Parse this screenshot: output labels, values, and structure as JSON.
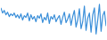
{
  "chart_data": {
    "type": "line",
    "x": [
      0,
      1,
      2,
      3,
      4,
      5,
      6,
      7,
      8,
      9,
      10,
      11,
      12,
      13,
      14,
      15,
      16,
      17,
      18,
      19,
      20,
      21,
      22,
      23,
      24,
      25,
      26,
      27,
      28,
      29,
      30,
      31,
      32,
      33,
      34,
      35,
      36,
      37,
      38,
      39,
      40,
      41,
      42,
      43,
      44,
      45,
      46,
      47,
      48,
      49,
      50,
      51,
      52,
      53,
      54,
      55,
      56,
      57,
      58,
      59,
      60,
      61,
      62,
      63
    ],
    "series": [
      {
        "color": "#3b8fd9",
        "values": [
          36,
          30,
          33,
          28,
          31,
          26,
          29,
          27,
          30,
          25,
          28,
          24,
          29,
          22,
          27,
          25,
          30,
          21,
          28,
          23,
          26,
          20,
          27,
          24,
          29,
          19,
          25,
          22,
          30,
          18,
          26,
          23,
          28,
          20,
          24,
          27,
          17,
          25,
          31,
          19,
          23,
          29,
          16,
          26,
          33,
          14,
          22,
          35,
          12,
          20,
          38,
          10,
          24,
          30,
          8,
          28,
          36,
          6,
          22,
          40,
          9,
          27,
          32,
          15
        ]
      }
    ],
    "xlim": [
      0,
      63
    ],
    "ylim": [
      0,
      44
    ],
    "tick_labels": false,
    "grid": false
  }
}
